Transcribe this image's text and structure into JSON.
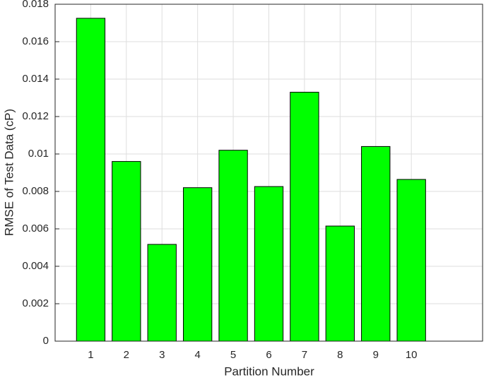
{
  "chart_data": {
    "type": "bar",
    "x_label": "Partition Number",
    "y_label": "RMSE of Test Data (cP)",
    "x": [
      1,
      2,
      3,
      4,
      5,
      6,
      7,
      8,
      9,
      10
    ],
    "values": [
      0.01725,
      0.0096,
      0.00517,
      0.0082,
      0.0102,
      0.00826,
      0.0133,
      0.00615,
      0.0104,
      0.00864
    ],
    "color": "#00ff00",
    "xlim": [
      0,
      12
    ],
    "xticks": [
      1,
      2,
      3,
      4,
      5,
      6,
      7,
      8,
      9,
      10
    ],
    "ylim": [
      0,
      0.018
    ],
    "yticks": [
      0,
      0.002,
      0.004,
      0.006,
      0.008,
      0.01,
      0.012,
      0.014,
      0.016,
      0.018
    ],
    "grid": true
  }
}
